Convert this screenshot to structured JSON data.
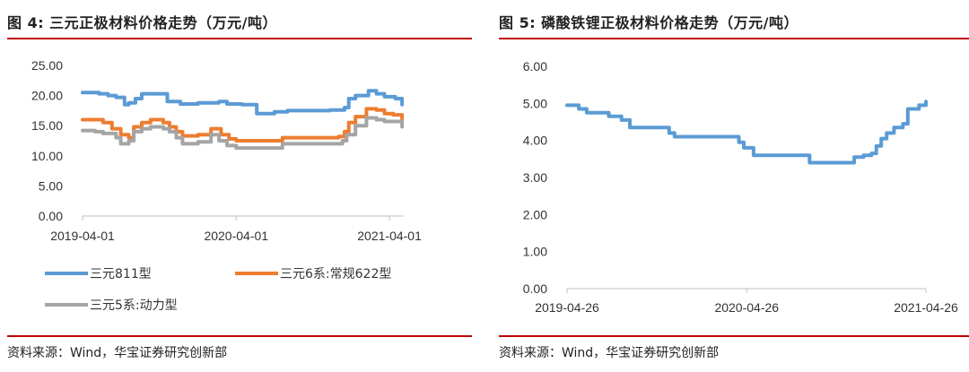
{
  "chart_data": [
    {
      "type": "line",
      "title": "图 4: 三元正极材料价格走势（万元/吨）",
      "source": "资料来源：Wind，华宝证券研究创新部",
      "xlabel": "",
      "ylabel": "",
      "ylim": [
        0,
        25
      ],
      "yticks": [
        "25.00",
        "20.00",
        "15.00",
        "10.00",
        "5.00",
        "0.00"
      ],
      "xticks": [
        "2019-04-01",
        "2020-04-01",
        "2021-04-01"
      ],
      "xlim": [
        "2019-04-01",
        "2021-05-05"
      ],
      "legend": "bottom",
      "grid": false,
      "series": [
        {
          "name": "三元811型",
          "color": "#5b9bd5",
          "points": [
            [
              "2019-04-01",
              20.5
            ],
            [
              "2019-05-10",
              20.3
            ],
            [
              "2019-06-01",
              20.0
            ],
            [
              "2019-06-20",
              19.7
            ],
            [
              "2019-07-10",
              18.5
            ],
            [
              "2019-07-20",
              18.8
            ],
            [
              "2019-08-05",
              19.5
            ],
            [
              "2019-08-20",
              20.3
            ],
            [
              "2019-10-20",
              19.0
            ],
            [
              "2019-11-20",
              18.6
            ],
            [
              "2020-01-01",
              18.8
            ],
            [
              "2020-02-20",
              19.0
            ],
            [
              "2020-03-10",
              18.6
            ],
            [
              "2020-04-15",
              18.5
            ],
            [
              "2020-05-20",
              17.0
            ],
            [
              "2020-07-01",
              17.3
            ],
            [
              "2020-08-01",
              17.5
            ],
            [
              "2020-11-10",
              17.6
            ],
            [
              "2020-12-15",
              18.0
            ],
            [
              "2020-12-25",
              19.5
            ],
            [
              "2021-01-10",
              20.0
            ],
            [
              "2021-02-10",
              20.8
            ],
            [
              "2021-03-01",
              20.3
            ],
            [
              "2021-03-20",
              19.8
            ],
            [
              "2021-04-15",
              19.5
            ],
            [
              "2021-05-01",
              18.5
            ]
          ]
        },
        {
          "name": "三元6系:常规622型",
          "color": "#ed7d31",
          "points": [
            [
              "2019-04-01",
              16.0
            ],
            [
              "2019-05-20",
              15.5
            ],
            [
              "2019-06-10",
              14.5
            ],
            [
              "2019-07-01",
              13.5
            ],
            [
              "2019-07-20",
              13.0
            ],
            [
              "2019-08-01",
              14.8
            ],
            [
              "2019-08-20",
              15.5
            ],
            [
              "2019-09-10",
              16.0
            ],
            [
              "2019-10-10",
              15.5
            ],
            [
              "2019-10-25",
              14.8
            ],
            [
              "2019-11-10",
              14.0
            ],
            [
              "2019-11-25",
              13.3
            ],
            [
              "2020-01-01",
              13.5
            ],
            [
              "2020-02-01",
              14.5
            ],
            [
              "2020-02-25",
              13.5
            ],
            [
              "2020-03-15",
              12.8
            ],
            [
              "2020-04-01",
              12.5
            ],
            [
              "2020-07-01",
              12.5
            ],
            [
              "2020-07-20",
              13.0
            ],
            [
              "2020-12-01",
              13.2
            ],
            [
              "2020-12-15",
              14.0
            ],
            [
              "2020-12-25",
              15.5
            ],
            [
              "2021-01-10",
              16.5
            ],
            [
              "2021-02-05",
              17.8
            ],
            [
              "2021-03-01",
              17.6
            ],
            [
              "2021-03-20",
              17.0
            ],
            [
              "2021-04-10",
              16.8
            ],
            [
              "2021-05-01",
              16.0
            ]
          ]
        },
        {
          "name": "三元5系:动力型",
          "color": "#a5a5a5",
          "points": [
            [
              "2019-04-01",
              14.2
            ],
            [
              "2019-05-01",
              14.0
            ],
            [
              "2019-05-20",
              13.7
            ],
            [
              "2019-06-20",
              13.0
            ],
            [
              "2019-07-01",
              12.0
            ],
            [
              "2019-07-20",
              12.5
            ],
            [
              "2019-08-01",
              14.0
            ],
            [
              "2019-08-20",
              14.5
            ],
            [
              "2019-09-10",
              14.8
            ],
            [
              "2019-10-10",
              14.5
            ],
            [
              "2019-10-25",
              14.0
            ],
            [
              "2019-11-10",
              13.0
            ],
            [
              "2019-11-25",
              12.0
            ],
            [
              "2020-01-01",
              12.3
            ],
            [
              "2020-02-01",
              13.5
            ],
            [
              "2020-02-20",
              12.5
            ],
            [
              "2020-03-10",
              11.7
            ],
            [
              "2020-04-01",
              11.3
            ],
            [
              "2020-07-01",
              11.3
            ],
            [
              "2020-07-20",
              12.0
            ],
            [
              "2020-11-20",
              12.0
            ],
            [
              "2020-12-10",
              12.5
            ],
            [
              "2020-12-20",
              13.5
            ],
            [
              "2021-01-10",
              15.0
            ],
            [
              "2021-02-05",
              16.3
            ],
            [
              "2021-03-01",
              16.0
            ],
            [
              "2021-03-20",
              15.7
            ],
            [
              "2021-05-01",
              14.8
            ]
          ]
        }
      ]
    },
    {
      "type": "line",
      "title": "图 5: 磷酸铁锂正极材料价格走势（万元/吨）",
      "source": "资料来源：Wind，华宝证券研究创新部",
      "xlabel": "",
      "ylabel": "",
      "ylim": [
        0,
        6
      ],
      "yticks": [
        "6.00",
        "5.00",
        "4.00",
        "3.00",
        "2.00",
        "1.00",
        "0.00"
      ],
      "xticks": [
        "2019-04-26",
        "2020-04-26",
        "2021-04-26"
      ],
      "xlim": [
        "2019-04-26",
        "2021-04-26"
      ],
      "legend": "none",
      "grid": false,
      "series": [
        {
          "name": "",
          "color": "#5b9bd5",
          "points": [
            [
              "2019-04-26",
              4.95
            ],
            [
              "2019-05-20",
              4.85
            ],
            [
              "2019-06-05",
              4.75
            ],
            [
              "2019-07-20",
              4.65
            ],
            [
              "2019-08-15",
              4.55
            ],
            [
              "2019-09-01",
              4.35
            ],
            [
              "2019-11-10",
              4.35
            ],
            [
              "2019-11-20",
              4.2
            ],
            [
              "2019-12-01",
              4.1
            ],
            [
              "2020-03-15",
              4.1
            ],
            [
              "2020-04-10",
              3.95
            ],
            [
              "2020-04-20",
              3.8
            ],
            [
              "2020-05-10",
              3.6
            ],
            [
              "2020-08-20",
              3.6
            ],
            [
              "2020-09-01",
              3.4
            ],
            [
              "2020-11-20",
              3.4
            ],
            [
              "2020-12-01",
              3.55
            ],
            [
              "2020-12-20",
              3.6
            ],
            [
              "2021-01-05",
              3.65
            ],
            [
              "2021-01-15",
              3.85
            ],
            [
              "2021-01-25",
              4.05
            ],
            [
              "2021-02-05",
              4.2
            ],
            [
              "2021-02-20",
              4.35
            ],
            [
              "2021-03-10",
              4.45
            ],
            [
              "2021-03-20",
              4.85
            ],
            [
              "2021-04-12",
              4.95
            ],
            [
              "2021-04-26",
              5.05
            ]
          ]
        }
      ]
    }
  ]
}
